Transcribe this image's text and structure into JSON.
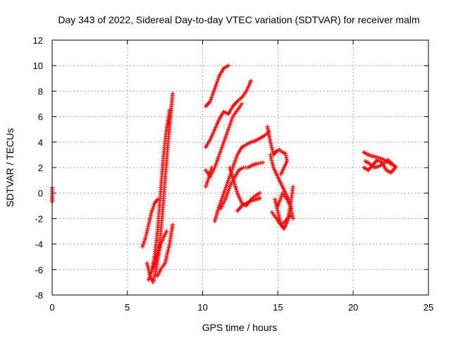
{
  "chart_data": {
    "type": "scatter",
    "title": "Day 343 of 2022, Sidereal Day-to-day VTEC variation (SDTVAR) for receiver malm",
    "xlabel": "GPS time / hours",
    "ylabel": "SDTVAR / TECUs",
    "xlim": [
      0,
      25
    ],
    "ylim": [
      -8,
      12
    ],
    "xticks": [
      0,
      5,
      10,
      15,
      20,
      25
    ],
    "yticks": [
      -8,
      -6,
      -4,
      -2,
      0,
      2,
      4,
      6,
      8,
      10,
      12
    ],
    "grid": true,
    "marker": "plus",
    "color": "#ff0000",
    "series": [
      {
        "x": [
          0.0,
          0.0,
          0.0
        ],
        "y": [
          0.4,
          -0.3,
          -0.7
        ]
      },
      {
        "x": [
          6.3,
          6.5,
          6.7,
          6.9,
          7.1,
          7.3,
          7.5,
          7.7,
          7.9,
          8.0
        ],
        "y": [
          -5.5,
          -6.5,
          -7.0,
          -6.0,
          -4.5,
          -2.0,
          1.0,
          4.0,
          6.5,
          7.8
        ]
      },
      {
        "x": [
          6.4,
          6.6,
          6.8,
          7.0,
          7.2,
          7.4,
          7.6,
          7.8
        ],
        "y": [
          -6.8,
          -6.2,
          -5.0,
          -3.0,
          0.0,
          3.0,
          5.0,
          6.5
        ]
      },
      {
        "x": [
          6.0,
          6.2,
          6.4,
          6.6,
          6.8,
          7.0
        ],
        "y": [
          -4.2,
          -3.5,
          -2.5,
          -1.5,
          -0.8,
          -0.5
        ]
      },
      {
        "x": [
          6.6,
          6.8,
          7.0,
          7.2,
          7.4,
          7.6
        ],
        "y": [
          -6.2,
          -5.5,
          -4.8,
          -4.0,
          -3.5,
          -3.0
        ]
      },
      {
        "x": [
          7.0,
          7.2,
          7.5,
          7.8,
          8.0
        ],
        "y": [
          -6.5,
          -6.0,
          -5.5,
          -4.0,
          -2.5
        ]
      },
      {
        "x": [
          10.2,
          10.5,
          10.8,
          11.1,
          11.4,
          11.7
        ],
        "y": [
          6.8,
          7.2,
          8.2,
          9.2,
          9.8,
          10.0
        ]
      },
      {
        "x": [
          10.2,
          10.5,
          10.8,
          11.1,
          11.4,
          11.7,
          12.0,
          12.3,
          12.6,
          12.9,
          13.2
        ],
        "y": [
          3.6,
          4.2,
          5.0,
          5.8,
          6.4,
          6.2,
          6.8,
          7.2,
          7.5,
          8.0,
          8.8
        ]
      },
      {
        "x": [
          10.2,
          10.5,
          10.8,
          11.1,
          11.4,
          11.7,
          12.0,
          12.3,
          12.6
        ],
        "y": [
          1.8,
          1.3,
          2.0,
          3.0,
          4.0,
          5.0,
          6.0,
          6.5,
          7.0
        ]
      },
      {
        "x": [
          10.2,
          10.4,
          10.6
        ],
        "y": [
          0.5,
          1.2,
          2.0
        ]
      },
      {
        "x": [
          10.8,
          11.1,
          11.4,
          11.7,
          12.0,
          12.3,
          12.6,
          12.9,
          13.2,
          13.5,
          13.8,
          14.1,
          14.4
        ],
        "y": [
          -2.2,
          -1.0,
          0.0,
          1.0,
          2.0,
          3.0,
          3.6,
          3.8,
          4.0,
          4.1,
          4.3,
          4.5,
          4.8
        ]
      },
      {
        "x": [
          11.2,
          11.5,
          11.8,
          12.1,
          12.4,
          12.7,
          13.0,
          13.3,
          13.6,
          14.0
        ],
        "y": [
          -1.2,
          -0.5,
          0.5,
          1.2,
          1.8,
          2.0,
          2.0,
          2.2,
          2.3,
          2.4
        ]
      },
      {
        "x": [
          11.8,
          12.0,
          12.3,
          12.6,
          12.9,
          13.2,
          13.5,
          13.8
        ],
        "y": [
          2.0,
          1.2,
          0.0,
          -0.8,
          -1.0,
          -0.5,
          -0.2,
          0.0
        ]
      },
      {
        "x": [
          12.3,
          12.6,
          12.9,
          13.2,
          13.5,
          13.8
        ],
        "y": [
          -1.4,
          -1.0,
          -0.8,
          -0.6,
          -0.5,
          -0.4
        ]
      },
      {
        "x": [
          14.3,
          14.5,
          14.7,
          14.9,
          15.1,
          15.3,
          15.5,
          15.6,
          15.4,
          15.2
        ],
        "y": [
          5.2,
          4.0,
          3.0,
          3.3,
          3.4,
          3.2,
          3.1,
          2.5,
          2.0,
          1.5
        ]
      },
      {
        "x": [
          14.5,
          14.7,
          14.9,
          15.1,
          15.3,
          15.5,
          15.7,
          15.9,
          16.0
        ],
        "y": [
          3.0,
          2.0,
          1.5,
          1.0,
          0.5,
          0.0,
          -0.5,
          -1.5,
          -2.0
        ]
      },
      {
        "x": [
          14.8,
          15.0,
          15.2,
          15.4,
          15.6,
          15.8,
          16.0
        ],
        "y": [
          -0.5,
          -1.5,
          -2.5,
          -2.8,
          -2.3,
          -1.2,
          0.5
        ]
      },
      {
        "x": [
          14.6,
          14.9,
          15.2,
          15.5,
          15.8
        ],
        "y": [
          -1.5,
          -2.0,
          -2.5,
          -2.2,
          -1.8
        ]
      },
      {
        "x": [
          15.0,
          15.3,
          15.6,
          15.9
        ],
        "y": [
          -1.0,
          0.0,
          -0.5,
          -1.2
        ]
      },
      {
        "x": [
          20.7,
          21.0,
          21.3,
          21.6,
          21.9,
          22.2,
          22.5,
          22.8
        ],
        "y": [
          3.2,
          3.0,
          2.9,
          2.8,
          2.7,
          2.5,
          2.3,
          2.1
        ]
      },
      {
        "x": [
          20.7,
          21.0,
          21.3,
          21.6,
          21.9,
          22.2,
          22.5,
          22.8
        ],
        "y": [
          2.0,
          1.8,
          2.2,
          2.6,
          2.4,
          1.8,
          1.6,
          2.0
        ]
      },
      {
        "x": [
          20.8,
          21.1,
          21.4,
          21.7,
          22.0,
          22.3,
          22.6
        ],
        "y": [
          2.5,
          2.3,
          2.0,
          2.1,
          2.3,
          2.6,
          2.3
        ]
      }
    ]
  }
}
